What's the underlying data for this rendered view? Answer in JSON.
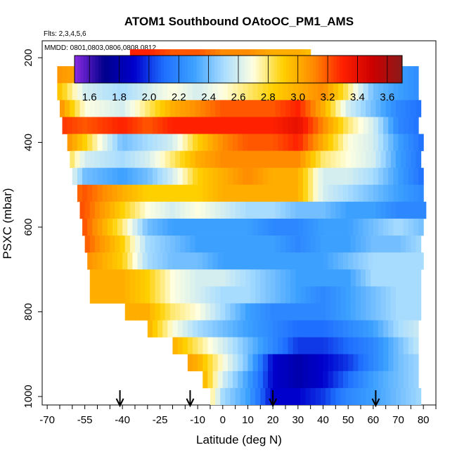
{
  "chart_data": {
    "type": "heatmap",
    "title": "ATOM1 Southbound OAtoOC_PM1_AMS",
    "subtitle": "Flts: 2,3,4,5,6",
    "annotation": "MMDD: 0801,0803,0806,0808,0812",
    "xlabel": "Latitude (deg N)",
    "ylabel": "PSXC (mbar)",
    "xlim": [
      -72,
      85
    ],
    "ylim": [
      1020,
      160
    ],
    "x_ticks": [
      -70,
      -55,
      -40,
      -25,
      -10,
      0,
      10,
      20,
      30,
      40,
      50,
      60,
      70,
      80
    ],
    "x_tick_labels": [
      "-70",
      "-55",
      "-40",
      "-25",
      "-10",
      "0",
      "10",
      "20",
      "30",
      "40",
      "50",
      "60",
      "70",
      "80"
    ],
    "y_ticks": [
      200,
      400,
      600,
      800,
      1000
    ],
    "y_tick_labels": [
      "200",
      "400",
      "600",
      "800",
      "1000"
    ],
    "colorbar": {
      "ticks": [
        1.6,
        1.8,
        2.0,
        2.2,
        2.4,
        2.6,
        2.8,
        3.0,
        3.2,
        3.4,
        3.6
      ],
      "tick_labels": [
        "1.6",
        "1.8",
        "2.0",
        "2.2",
        "2.4",
        "2.6",
        "2.8",
        "3.0",
        "3.2",
        "3.4",
        "3.6"
      ],
      "range": [
        1.5,
        3.7
      ],
      "colors": [
        "#8a2be2",
        "#00008b",
        "#0000cd",
        "#1e6fff",
        "#3ca0ff",
        "#a8dcff",
        "#ffffe0",
        "#ffd000",
        "#ff8c00",
        "#ff2000",
        "#cc0000",
        "#8b1a1a"
      ]
    },
    "arrows_latitude": [
      -41,
      -13,
      20,
      61
    ],
    "pressure_levels": [
      200,
      240,
      280,
      320,
      360,
      400,
      440,
      480,
      520,
      560,
      600,
      640,
      680,
      720,
      760,
      800,
      840,
      880,
      920,
      960,
      1000
    ],
    "level_lat_range": [
      [
        -37,
        35
      ],
      [
        -66,
        78
      ],
      [
        -66,
        78
      ],
      [
        -65,
        78
      ],
      [
        -64,
        78
      ],
      [
        -62,
        79
      ],
      [
        -61,
        79
      ],
      [
        -60,
        80
      ],
      [
        -58,
        80
      ],
      [
        -57,
        81
      ],
      [
        -56,
        80
      ],
      [
        -55,
        79
      ],
      [
        -54,
        79
      ],
      [
        -53,
        78
      ],
      [
        -53,
        78
      ],
      [
        -39,
        78
      ],
      [
        -30,
        78
      ],
      [
        -20,
        78
      ],
      [
        -14,
        78
      ],
      [
        -8,
        78
      ],
      [
        -5,
        78
      ]
    ],
    "profile_lats": [
      -70,
      -55,
      -40,
      -30,
      -20,
      -10,
      0,
      10,
      20,
      30,
      40,
      50,
      60,
      70,
      80
    ],
    "values": [
      [
        3.3,
        3.3,
        3.3,
        3.3,
        3.2,
        3.2,
        3.1,
        3.1,
        3.0,
        3.0,
        2.9,
        2.9,
        2.9,
        2.9,
        2.9
      ],
      [
        3.1,
        3.0,
        2.95,
        3.0,
        3.0,
        3.0,
        2.95,
        2.9,
        2.95,
        3.1,
        3.0,
        3.0,
        2.6,
        2.3,
        2.2
      ],
      [
        3.1,
        2.6,
        2.5,
        2.6,
        2.7,
        2.6,
        2.7,
        2.8,
        2.9,
        3.0,
        3.1,
        2.8,
        2.4,
        2.3,
        2.2
      ],
      [
        3.3,
        2.7,
        2.6,
        2.8,
        3.0,
        3.1,
        3.2,
        3.2,
        3.2,
        3.3,
        3.0,
        2.6,
        2.4,
        2.2,
        2.1
      ],
      [
        3.3,
        3.2,
        3.3,
        3.2,
        3.3,
        3.3,
        3.3,
        3.3,
        3.3,
        3.4,
        3.1,
        2.8,
        2.6,
        2.2,
        2.1
      ],
      [
        3.3,
        2.9,
        2.4,
        2.5,
        2.6,
        2.9,
        3.1,
        3.2,
        3.2,
        3.3,
        3.0,
        2.7,
        2.6,
        2.3,
        2.1
      ],
      [
        3.2,
        2.6,
        2.5,
        2.6,
        2.8,
        3.0,
        3.1,
        3.1,
        3.1,
        3.1,
        2.8,
        2.7,
        2.6,
        2.3,
        2.1
      ],
      [
        3.1,
        2.4,
        2.3,
        2.4,
        2.6,
        2.9,
        3.0,
        3.1,
        3.0,
        3.0,
        2.6,
        2.6,
        2.5,
        2.3,
        2.1
      ],
      [
        3.0,
        3.2,
        3.0,
        2.9,
        2.9,
        2.9,
        3.0,
        3.0,
        3.0,
        3.0,
        2.6,
        2.5,
        2.4,
        2.3,
        2.2
      ],
      [
        3.3,
        3.2,
        2.9,
        2.7,
        2.6,
        2.7,
        2.6,
        2.5,
        2.5,
        2.4,
        2.4,
        2.3,
        2.3,
        2.2,
        2.2
      ],
      [
        3.3,
        3.2,
        2.8,
        2.4,
        2.3,
        2.3,
        2.3,
        2.3,
        2.2,
        2.2,
        2.3,
        2.3,
        2.4,
        2.5,
        2.4
      ],
      [
        3.2,
        3.2,
        2.9,
        2.5,
        2.4,
        2.3,
        2.3,
        2.3,
        2.3,
        2.2,
        2.3,
        2.3,
        2.4,
        2.4,
        2.5
      ],
      [
        3.1,
        3.1,
        2.9,
        2.5,
        2.4,
        2.4,
        2.3,
        2.3,
        2.3,
        2.3,
        2.3,
        2.4,
        2.5,
        2.5,
        2.5
      ],
      [
        3.0,
        3.0,
        3.0,
        2.9,
        2.7,
        2.6,
        2.6,
        2.5,
        2.4,
        2.3,
        2.3,
        2.3,
        2.5,
        2.5,
        2.5
      ],
      [
        3.0,
        3.0,
        3.0,
        2.9,
        2.7,
        2.6,
        2.5,
        2.5,
        2.4,
        2.3,
        2.2,
        2.3,
        2.4,
        2.5,
        2.5
      ],
      [
        3.0,
        3.0,
        3.0,
        3.0,
        2.8,
        2.7,
        2.5,
        2.3,
        2.2,
        2.2,
        2.2,
        2.3,
        2.4,
        2.5,
        2.5
      ],
      [
        3.1,
        3.1,
        3.1,
        3.0,
        2.7,
        2.5,
        2.4,
        2.3,
        2.2,
        2.1,
        2.1,
        2.2,
        2.3,
        2.5,
        2.6
      ],
      [
        3.1,
        3.1,
        3.1,
        3.1,
        3.0,
        2.8,
        2.6,
        2.4,
        2.2,
        2.0,
        2.0,
        2.1,
        2.2,
        2.4,
        2.6
      ],
      [
        3.2,
        3.2,
        3.2,
        3.2,
        3.1,
        3.0,
        2.7,
        2.4,
        1.9,
        1.8,
        1.9,
        2.0,
        2.2,
        2.4,
        2.5
      ],
      [
        3.3,
        3.3,
        3.3,
        3.3,
        3.2,
        3.1,
        2.6,
        2.3,
        1.9,
        1.8,
        1.9,
        2.1,
        2.3,
        2.4,
        2.5
      ],
      [
        3.3,
        3.3,
        3.3,
        3.3,
        3.3,
        3.1,
        2.5,
        2.3,
        1.9,
        1.9,
        2.0,
        2.2,
        2.3,
        2.4,
        2.5
      ]
    ]
  }
}
